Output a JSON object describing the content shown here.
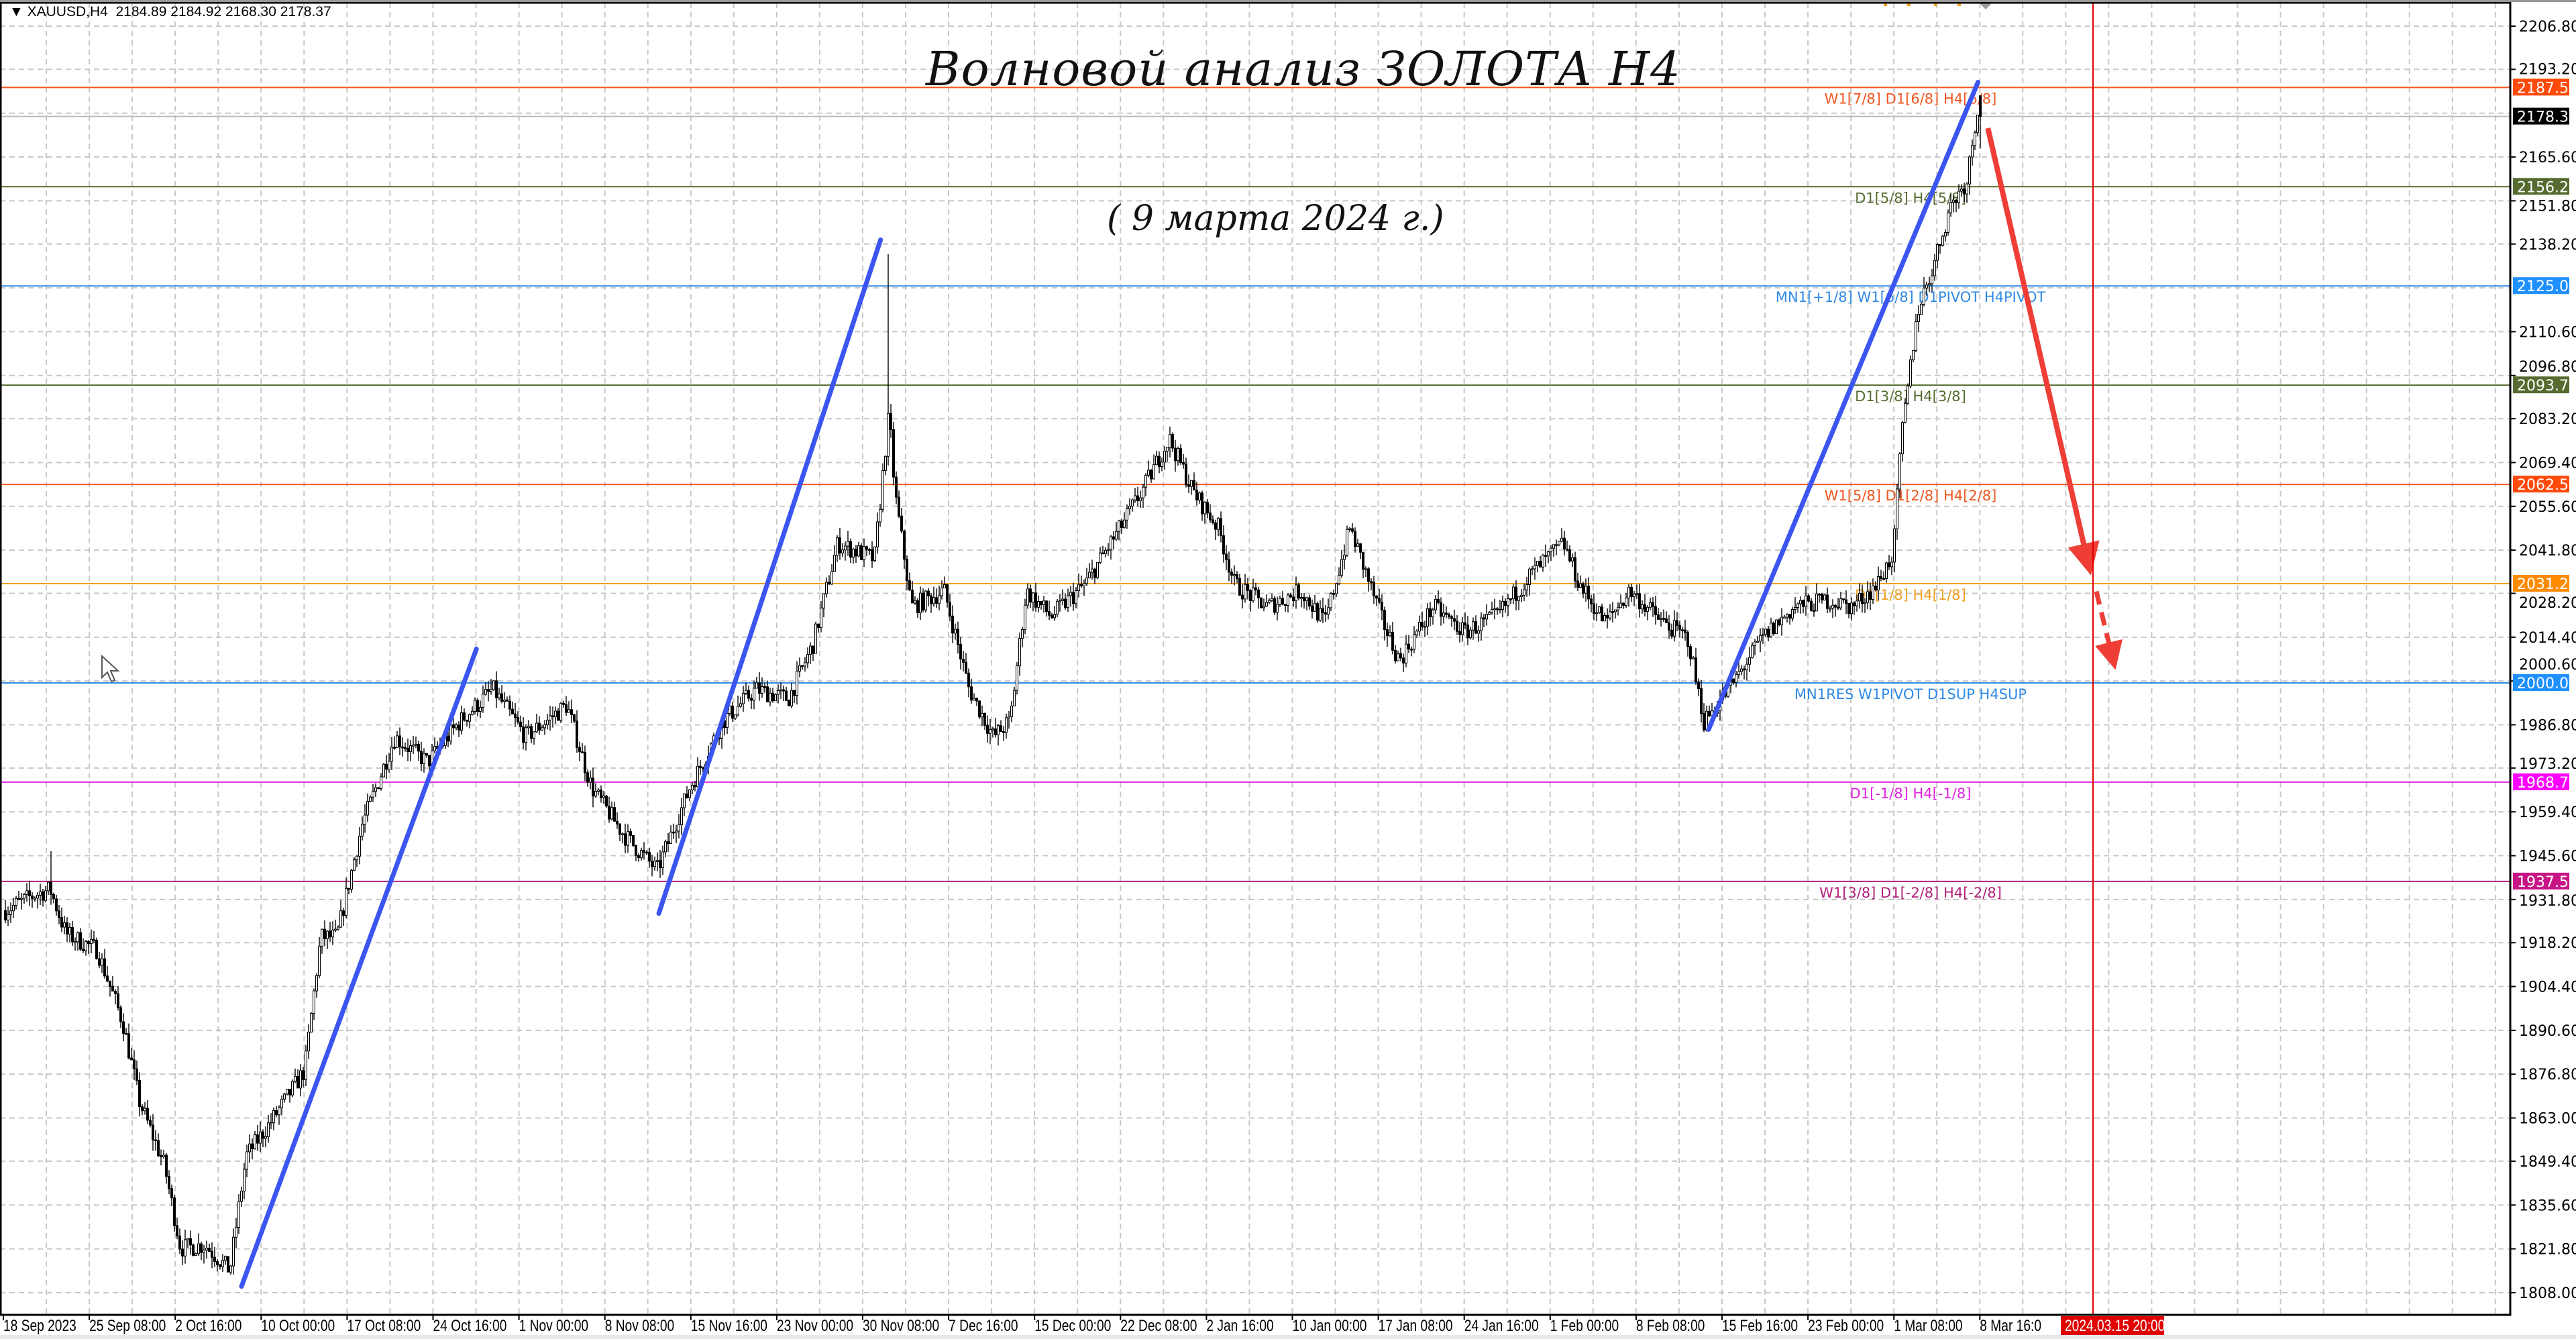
{
  "header": {
    "symbol": "XAUUSD,H4",
    "ohlc": "2184.89 2184.92 2168.30 2178.37"
  },
  "annotations": {
    "title": "Волновой анализ ЗОЛОТА H4",
    "subtitle": "( 9 марта 2024 г.)"
  },
  "crosshair_label": "2024.03.15 20:00",
  "colors": {
    "bull_body": "#ffffff",
    "bear_body": "#000000",
    "grid": "#c8c8c8",
    "wave_line": "#3b55f0",
    "forecast_arrow": "#ef3e36",
    "crosshair": "#e00000"
  },
  "chart_data": {
    "type": "candlestick",
    "symbol": "XAUUSD",
    "timeframe": "H4",
    "last_bar": {
      "open": 2184.89,
      "high": 2184.92,
      "low": 2168.3,
      "close": 2178.37
    },
    "ylim": [
      1808.0,
      2206.8
    ],
    "grid": true,
    "y_ticks": [
      "2206.80",
      "2193.20",
      "2165.60",
      "2151.80",
      "2138.20",
      "2110.60",
      "2096.80",
      "2083.20",
      "2069.40",
      "2055.60",
      "2041.80",
      "2028.20",
      "2014.40",
      "2000.60",
      "1986.80",
      "1973.20",
      "1959.40",
      "1945.60",
      "1931.80",
      "1918.20",
      "1904.40",
      "1890.60",
      "1876.80",
      "1863.00",
      "1849.40",
      "1835.60",
      "1821.80",
      "1808.00"
    ],
    "x_ticks": [
      {
        "label": "18 Sep 2023",
        "date": "2023-09-18T00:00"
      },
      {
        "label": "25 Sep 08:00",
        "date": "2023-09-25T08:00"
      },
      {
        "label": "2 Oct 16:00",
        "date": "2023-10-02T16:00"
      },
      {
        "label": "10 Oct 00:00",
        "date": "2023-10-10T00:00"
      },
      {
        "label": "17 Oct 08:00",
        "date": "2023-10-17T08:00"
      },
      {
        "label": "24 Oct 16:00",
        "date": "2023-10-24T16:00"
      },
      {
        "label": "1 Nov 00:00",
        "date": "2023-11-01T00:00"
      },
      {
        "label": "8 Nov 08:00",
        "date": "2023-11-08T08:00"
      },
      {
        "label": "15 Nov 16:00",
        "date": "2023-11-15T16:00"
      },
      {
        "label": "23 Nov 00:00",
        "date": "2023-11-23T00:00"
      },
      {
        "label": "30 Nov 08:00",
        "date": "2023-11-30T08:00"
      },
      {
        "label": "7 Dec 16:00",
        "date": "2023-12-07T16:00"
      },
      {
        "label": "15 Dec 00:00",
        "date": "2023-12-15T00:00"
      },
      {
        "label": "22 Dec 08:00",
        "date": "2023-12-22T08:00"
      },
      {
        "label": "2 Jan 16:00",
        "date": "2024-01-02T16:00"
      },
      {
        "label": "10 Jan 00:00",
        "date": "2024-01-10T00:00"
      },
      {
        "label": "17 Jan 08:00",
        "date": "2024-01-17T08:00"
      },
      {
        "label": "24 Jan 16:00",
        "date": "2024-01-24T16:00"
      },
      {
        "label": "1 Feb 00:00",
        "date": "2024-02-01T00:00"
      },
      {
        "label": "8 Feb 08:00",
        "date": "2024-02-08T08:00"
      },
      {
        "label": "15 Feb 16:00",
        "date": "2024-02-15T16:00"
      },
      {
        "label": "23 Feb 00:00",
        "date": "2024-02-23T00:00"
      },
      {
        "label": "1 Mar 08:00",
        "date": "2024-03-01T08:00"
      },
      {
        "label": "8 Mar 16:0",
        "date": "2024-03-08T16:00"
      }
    ],
    "price_path": [
      [
        "2023-09-18T00:00",
        1928
      ],
      [
        "2023-09-20T12:00",
        1933
      ],
      [
        "2023-09-22T00:00",
        1935
      ],
      [
        "2023-09-23T08:00",
        1921
      ],
      [
        "2023-09-26T00:00",
        1916
      ],
      [
        "2023-09-28T05:00",
        1893
      ],
      [
        "2023-09-29T15:00",
        1868
      ],
      [
        "2023-10-01T18:00",
        1848
      ],
      [
        "2023-10-03T03:00",
        1822
      ],
      [
        "2023-10-05T05:00",
        1823
      ],
      [
        "2023-10-07T08:00",
        1815
      ],
      [
        "2023-10-08T17:00",
        1851
      ],
      [
        "2023-10-10T21:00",
        1862
      ],
      [
        "2023-10-13T17:00",
        1878
      ],
      [
        "2023-10-15T02:00",
        1920
      ],
      [
        "2023-10-16T11:00",
        1920
      ],
      [
        "2023-10-18T14:00",
        1955
      ],
      [
        "2023-10-21T10:00",
        1983
      ],
      [
        "2023-10-24T05:00",
        1975
      ],
      [
        "2023-10-27T00:00",
        1988
      ],
      [
        "2023-10-29T19:00",
        1998
      ],
      [
        "2023-11-01T14:00",
        1983
      ],
      [
        "2023-11-05T02:00",
        1993
      ],
      [
        "2023-11-07T05:00",
        1967
      ],
      [
        "2023-11-10T00:00",
        1952
      ],
      [
        "2023-11-12T19:00",
        1941
      ],
      [
        "2023-11-15T14:00",
        1967
      ],
      [
        "2023-11-18T10:00",
        1988
      ],
      [
        "2023-11-21T05:00",
        1998
      ],
      [
        "2023-11-24T00:00",
        1995
      ],
      [
        "2023-11-26T02:00",
        2012
      ],
      [
        "2023-11-28T05:00",
        2044
      ],
      [
        "2023-12-01T08:00",
        2039
      ],
      [
        "2023-12-02T14:00",
        2085
      ],
      [
        "2023-12-03T02:00",
        2060
      ],
      [
        "2023-12-04T12:00",
        2024
      ],
      [
        "2023-12-07T07:00",
        2029
      ],
      [
        "2023-12-09T10:00",
        1998
      ],
      [
        "2023-12-11T12:00",
        1983
      ],
      [
        "2023-12-12T22:00",
        1988
      ],
      [
        "2023-12-14T07:00",
        2029
      ],
      [
        "2023-12-16T10:00",
        2021
      ],
      [
        "2023-12-19T07:00",
        2031
      ],
      [
        "2023-12-22T08:00",
        2049
      ],
      [
        "2023-12-25T13:00",
        2062
      ],
      [
        "2023-12-28T18:00",
        2077
      ],
      [
        "2023-12-31T23:00",
        2060
      ],
      [
        "2024-01-03T16:00",
        2049
      ],
      [
        "2024-01-05T02:00",
        2031
      ],
      [
        "2024-01-07T21:00",
        2024
      ],
      [
        "2024-01-10T17:00",
        2029
      ],
      [
        "2024-01-12T19:00",
        2019
      ],
      [
        "2024-01-14T22:00",
        2049
      ],
      [
        "2024-01-17T18:00",
        2019
      ],
      [
        "2024-01-19T03:00",
        2007
      ],
      [
        "2024-01-22T01:00",
        2024
      ],
      [
        "2024-01-24T16:00",
        2016
      ],
      [
        "2024-01-27T11:00",
        2021
      ],
      [
        "2024-01-30T07:00",
        2034
      ],
      [
        "2024-02-02T03:00",
        2044
      ],
      [
        "2024-02-03T12:00",
        2031
      ],
      [
        "2024-02-05T17:00",
        2019
      ],
      [
        "2024-02-07T19:00",
        2029
      ],
      [
        "2024-02-10T15:00",
        2019
      ],
      [
        "2024-02-12T18:00",
        2014
      ],
      [
        "2024-02-14T03:00",
        1988
      ],
      [
        "2024-02-16T06:00",
        1998
      ],
      [
        "2024-02-19T02:00",
        2014
      ],
      [
        "2024-02-21T21:00",
        2024
      ],
      [
        "2024-02-24T17:00",
        2026
      ],
      [
        "2024-02-26T19:00",
        2024
      ],
      [
        "2024-02-28T22:00",
        2031
      ],
      [
        "2024-03-01T07:00",
        2041
      ],
      [
        "2024-03-01T22:00",
        2075
      ],
      [
        "2024-03-03T08:00",
        2117
      ],
      [
        "2024-03-04T18:00",
        2132
      ],
      [
        "2024-03-06T03:00",
        2150
      ],
      [
        "2024-03-07T13:00",
        2158
      ],
      [
        "2024-03-08T16:00",
        2186
      ]
    ],
    "notable_highs": [
      [
        "2023-09-22T00:00",
        1947
      ],
      [
        "2023-12-02T14:00",
        2135
      ],
      [
        "2024-03-08T16:00",
        2195
      ]
    ],
    "levels": [
      {
        "price": 2187.5,
        "tag": "2187.50",
        "label": "W1[7/8] D1[6/8] H4[6/8]",
        "color": "#f0561e",
        "tag_bg": "#ff4a0a"
      },
      {
        "price": 2156.25,
        "tag": "2156.25",
        "label": "D1[5/8] H4[5/8]",
        "color": "#556b2f",
        "tag_bg": "#556b2f"
      },
      {
        "price": 2125.0,
        "tag": "2125.00",
        "label": "MN1[+1/8] W1[6/8] D1PIVOT H4PIVOT",
        "color": "#2e8ae6",
        "tag_bg": "#1e90ff"
      },
      {
        "price": 2093.75,
        "tag": "2093.75",
        "label": "D1[3/8] H4[3/8]",
        "color": "#556b2f",
        "tag_bg": "#556b2f"
      },
      {
        "price": 2062.5,
        "tag": "2062.50",
        "label": "W1[5/8] D1[2/8] H4[2/8]",
        "color": "#f0561e",
        "tag_bg": "#ff4a0a"
      },
      {
        "price": 2031.25,
        "tag": "2031.25",
        "label": "D1[1/8] H4[1/8]",
        "color": "#f0a020",
        "tag_bg": "#ff8c00"
      },
      {
        "price": 2000.0,
        "tag": "2000.00",
        "label": "MN1RES W1PIVOT D1SUP H4SUP",
        "color": "#2e8ae6",
        "tag_bg": "#1e90ff"
      },
      {
        "price": 1968.75,
        "tag": "1968.75",
        "label": "D1[-1/8] H4[-1/8]",
        "color": "#e020e0",
        "tag_bg": "#ff00ff"
      },
      {
        "price": 1937.5,
        "tag": "1937.50",
        "label": "W1[3/8] D1[-2/8] H4[-2/8]",
        "color": "#b0207a",
        "tag_bg": "#c71585"
      }
    ],
    "current_price": {
      "price": 2178.37,
      "tag": "2178.37",
      "tag_bg": "#000000"
    }
  }
}
